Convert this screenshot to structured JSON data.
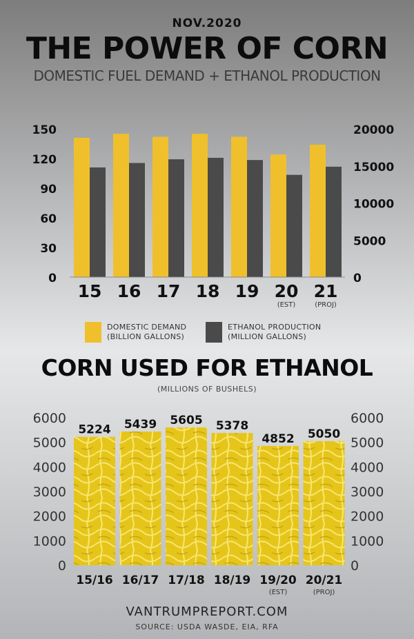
{
  "header": {
    "date": "NOV.2020",
    "title": "THE POWER OF CORN",
    "subtitle": "DOMESTIC FUEL DEMAND + ETHANOL PRODUCTION"
  },
  "colors": {
    "demand": "#efc02b",
    "ethanol": "#4a4a4a",
    "corn_bar": "#e6c51a",
    "text_dark": "#111111"
  },
  "legend": {
    "demand_label": "DOMESTIC DEMAND",
    "demand_units": "(BILLION GALLONS)",
    "ethanol_label": "ETHANOL PRODUCTION",
    "ethanol_units": "(MILLION GALLONS)"
  },
  "chart2_header": {
    "title": "CORN USED FOR ETHANOL",
    "units": "(MILLIONS OF BUSHELS)"
  },
  "footer": {
    "url": "VANTRUMPREPORT.COM",
    "source": "SOURCE: USDA WASDE, EIA, RFA"
  },
  "chart_data": [
    {
      "type": "bar",
      "categories": [
        "15",
        "16",
        "17",
        "18",
        "19",
        "20",
        "21"
      ],
      "category_notes": [
        "",
        "",
        "",
        "",
        "",
        "(EST)",
        "(PROJ)"
      ],
      "series": [
        {
          "name": "DOMESTIC DEMAND (BILLION GALLONS)",
          "axis": "left",
          "values": [
            141,
            145,
            142,
            145,
            142,
            124,
            134
          ]
        },
        {
          "name": "ETHANOL PRODUCTION (MILLION GALLONS)",
          "axis": "right",
          "values": [
            14800,
            15400,
            15900,
            16100,
            15800,
            13800,
            14900
          ]
        }
      ],
      "y_left": {
        "ticks": [
          "150",
          "120",
          "90",
          "60",
          "30",
          "0"
        ],
        "ylim": [
          0,
          150
        ]
      },
      "y_right": {
        "ticks": [
          "20000",
          "15000",
          "10000",
          "5000",
          "0"
        ],
        "ylim": [
          0,
          20000
        ]
      },
      "grid": false,
      "legend_position": "bottom"
    },
    {
      "type": "bar",
      "categories": [
        "15/16",
        "16/17",
        "17/18",
        "18/19",
        "19/20",
        "20/21"
      ],
      "category_notes": [
        "",
        "",
        "",
        "",
        "(EST)",
        "(PROJ)"
      ],
      "values": [
        5224,
        5439,
        5605,
        5378,
        4852,
        5050
      ],
      "data_labels": [
        "5224",
        "5439",
        "5605",
        "5378",
        "4852",
        "5050"
      ],
      "y_left": {
        "ticks": [
          "6000",
          "5000",
          "4000",
          "3000",
          "2000",
          "1000",
          "0"
        ],
        "ylim": [
          0,
          6000
        ]
      },
      "y_right": {
        "ticks": [
          "6000",
          "5000",
          "4000",
          "3000",
          "2000",
          "1000",
          "0"
        ],
        "ylim": [
          0,
          6000
        ]
      },
      "grid": false
    }
  ]
}
